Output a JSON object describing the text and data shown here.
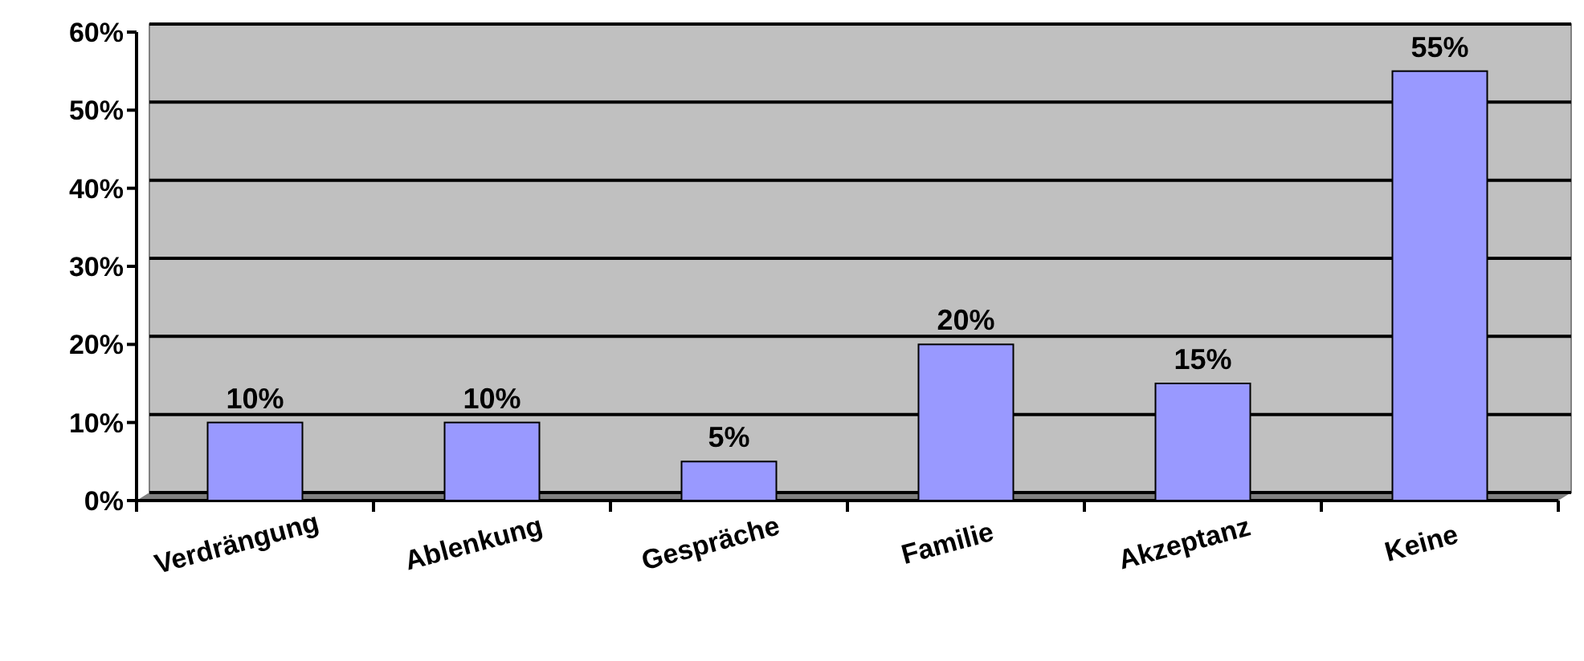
{
  "chart_data": {
    "type": "bar",
    "categories": [
      "Verdrängung",
      "Ablenkung",
      "Gespräche",
      "Familie",
      "Akzeptanz",
      "Keine"
    ],
    "values": [
      10,
      10,
      5,
      20,
      15,
      55
    ],
    "value_labels": [
      "10%",
      "10%",
      "5%",
      "20%",
      "15%",
      "55%"
    ],
    "color": "#9999ff",
    "ylim": [
      0,
      60
    ],
    "yticks": [
      {
        "value": 0,
        "label": "0%"
      },
      {
        "value": 10,
        "label": "10%"
      },
      {
        "value": 20,
        "label": "20%"
      },
      {
        "value": 30,
        "label": "30%"
      },
      {
        "value": 40,
        "label": "40%"
      },
      {
        "value": 50,
        "label": "50%"
      },
      {
        "value": 60,
        "label": "60%"
      }
    ],
    "grid": "y"
  }
}
